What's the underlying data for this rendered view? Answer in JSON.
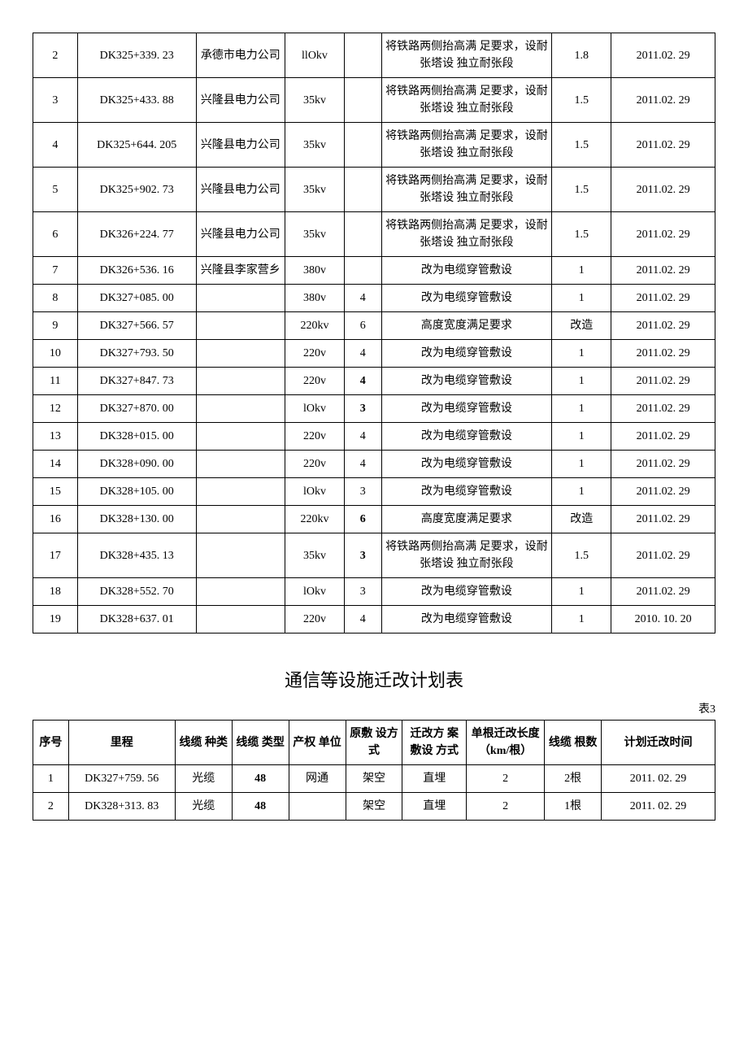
{
  "table1": {
    "col_widths": [
      "6%",
      "16%",
      "12%",
      "8%",
      "5%",
      "23%",
      "8%",
      "14%"
    ],
    "rows": [
      [
        "2",
        "DK325+339. 23",
        "承德市电力公司",
        "llOkv",
        "",
        "将铁路两侧抬高满  足要求，设耐张塔设  独立耐张段",
        "1.8",
        "2011.02. 29"
      ],
      [
        "3",
        "DK325+433. 88",
        "兴隆县电力公司",
        "35kv",
        "",
        "将铁路两侧抬高满  足要求，设耐张塔设  独立耐张段",
        "1.5",
        "2011.02. 29"
      ],
      [
        "4",
        "DK325+644. 205",
        "兴隆县电力公司",
        "35kv",
        "",
        "将铁路两侧抬高满  足要求，设耐张塔设  独立耐张段",
        "1.5",
        "2011.02. 29"
      ],
      [
        "5",
        "DK325+902. 73",
        "兴隆县电力公司",
        "35kv",
        "",
        "将铁路两侧抬高满  足要求，设耐张塔设  独立耐张段",
        "1.5",
        "2011.02. 29"
      ],
      [
        "6",
        "DK326+224. 77",
        "兴隆县电力公司",
        "35kv",
        "",
        "将铁路两侧抬高满  足要求，设耐张塔设  独立耐张段",
        "1.5",
        "2011.02. 29"
      ],
      [
        "7",
        "DK326+536. 16",
        "兴隆县李家营乡",
        "380v",
        "",
        "改为电缆穿管敷设",
        "1",
        "2011.02. 29"
      ],
      [
        "8",
        "DK327+085. 00",
        "",
        "380v",
        "4",
        "改为电缆穿管敷设",
        "1",
        "2011.02. 29"
      ],
      [
        "9",
        "DK327+566. 57",
        "",
        "220kv",
        "6",
        "高度宽度满足要求",
        "改造",
        "2011.02. 29"
      ],
      [
        "10",
        "DK327+793. 50",
        "",
        "220v",
        "4",
        "改为电缆穿管敷设",
        "1",
        "2011.02. 29"
      ],
      [
        "11",
        "DK327+847. 73",
        "",
        "220v",
        "4",
        "改为电缆穿管敷设",
        "1",
        "2011.02. 29"
      ],
      [
        "12",
        "DK327+870. 00",
        "",
        "lOkv",
        "3",
        "改为电缆穿管敷设",
        "1",
        "2011.02. 29"
      ],
      [
        "13",
        "DK328+015. 00",
        "",
        "220v",
        "4",
        "改为电缆穿管敷设",
        "1",
        "2011.02. 29"
      ],
      [
        "14",
        "DK328+090. 00",
        "",
        "220v",
        "4",
        "改为电缆穿管敷设",
        "1",
        "2011.02. 29"
      ],
      [
        "15",
        "DK328+105. 00",
        "",
        "lOkv",
        "3",
        "改为电缆穿管敷设",
        "1",
        "2011.02. 29"
      ],
      [
        "16",
        "DK328+130. 00",
        "",
        "220kv",
        "6",
        "高度宽度满足要求",
        "改造",
        "2011.02. 29"
      ],
      [
        "17",
        "DK328+435. 13",
        "",
        "35kv",
        "3",
        "将铁路两侧抬高满  足要求，设耐张塔设  独立耐张段",
        "1.5",
        "2011.02. 29"
      ],
      [
        "18",
        "DK328+552. 70",
        "",
        "lOkv",
        "3",
        "改为电缆穿管敷设",
        "1",
        "2011.02. 29"
      ],
      [
        "19",
        "DK328+637. 01",
        "",
        "220v",
        "4",
        "改为电缆穿管敷设",
        "1",
        "2010. 10. 20"
      ]
    ],
    "bold_cells": {
      "9": [
        4
      ],
      "10": [
        4
      ],
      "14": [
        4
      ],
      "15": [
        4
      ]
    }
  },
  "section2": {
    "title": "通信等设施迁改计划表",
    "label": "表3"
  },
  "table2": {
    "col_widths": [
      "5%",
      "15%",
      "8%",
      "8%",
      "8%",
      "8%",
      "9%",
      "11%",
      "8%",
      "16%"
    ],
    "headers": [
      "序号",
      "里程",
      "线缆 种类",
      "线缆 类型",
      "产权 单位",
      "原敷 设方 式",
      "迁改方 案敷设 方式",
      "单根迁改长度（km/根）",
      "线缆 根数",
      "计划迁改时间"
    ],
    "rows": [
      [
        "1",
        "DK327+759. 56",
        "光缆",
        "48",
        "网通",
        "架空",
        "直埋",
        "2",
        "2根",
        "2011. 02. 29"
      ],
      [
        "2",
        "DK328+313. 83",
        "光缆",
        "48",
        "",
        "架空",
        "直埋",
        "2",
        "1根",
        "2011. 02. 29"
      ]
    ],
    "bold_cols": [
      3
    ]
  }
}
